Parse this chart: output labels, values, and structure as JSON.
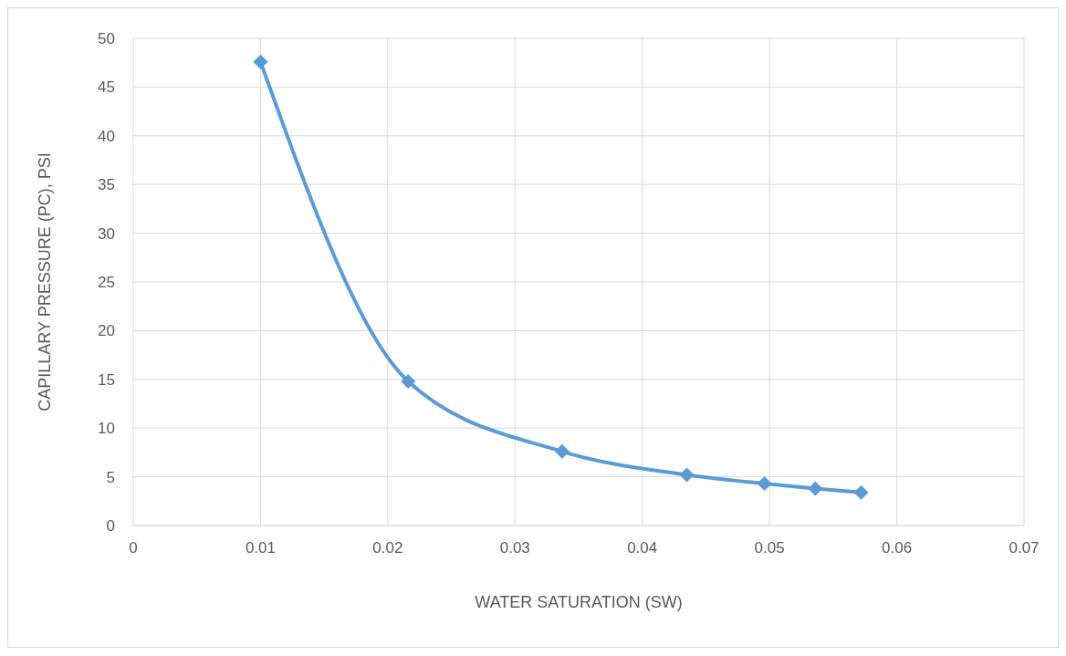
{
  "chart_data": {
    "type": "line",
    "xlabel": "WATER SATURATION (SW)",
    "ylabel": "CAPILLARY PRESSURE (PC), PSI",
    "x": [
      0.01,
      0.0216,
      0.0337,
      0.0435,
      0.0496,
      0.0536,
      0.0572
    ],
    "series": [
      {
        "color": "#5b9bd5",
        "values": [
          47.6,
          14.8,
          7.6,
          5.2,
          4.3,
          3.8,
          3.4
        ]
      }
    ],
    "xlim": [
      0,
      0.07
    ],
    "xticks": [
      0,
      0.01,
      0.02,
      0.03,
      0.04,
      0.05,
      0.06,
      0.07
    ],
    "ylim": [
      0,
      50
    ],
    "yticks": [
      0,
      5,
      10,
      15,
      20,
      25,
      30,
      35,
      40,
      45,
      50
    ],
    "grid": true,
    "marker": "diamond",
    "line_style": "solid"
  }
}
